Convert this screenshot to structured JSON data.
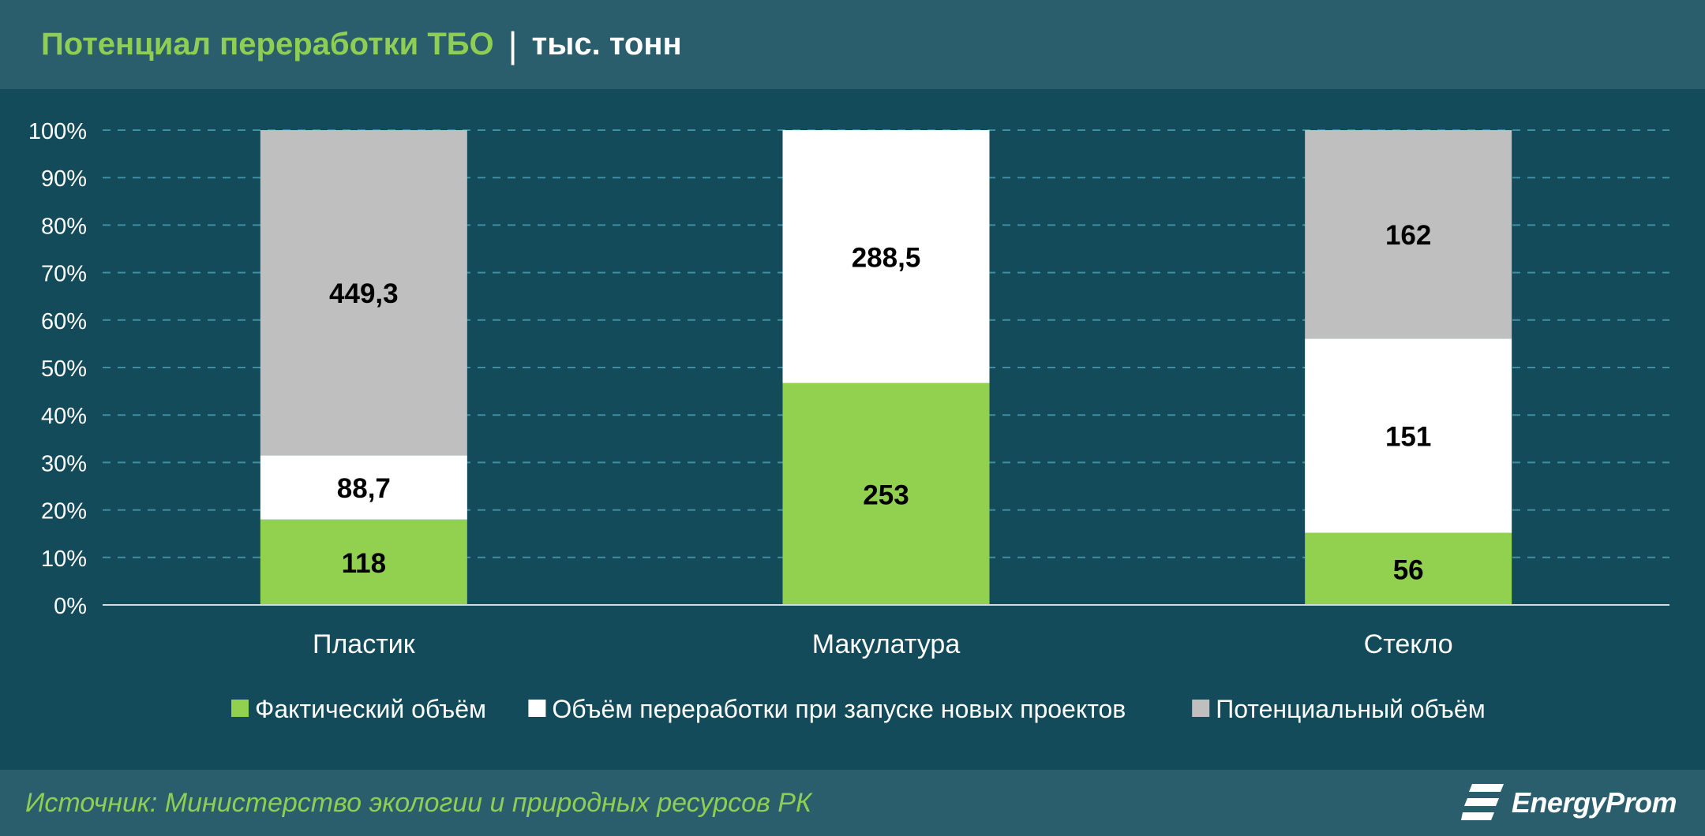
{
  "header": {
    "title": "Потенциал переработки ТБО",
    "separator": "|",
    "unit": "тыс. тонн"
  },
  "footer": {
    "source": "Источник: Министерство экологии и природных ресурсов РК",
    "logo_text": "EnergyProm"
  },
  "colors": {
    "background": "#134b5b",
    "header_band": "#2a5e6d",
    "accent_green": "#8fce55",
    "actual": "#92d050",
    "new_projects": "#ffffff",
    "potential": "#bfbfbf",
    "gridline": "#3f8fa3"
  },
  "chart_data": {
    "type": "bar",
    "stacked": "percent",
    "categories": [
      "Пластик",
      "Макулатура",
      "Стекло"
    ],
    "series": [
      {
        "name": "Фактический объём",
        "values": [
          118,
          253,
          56
        ],
        "color": "#92d050"
      },
      {
        "name": "Объём переработки при запуске новых проектов",
        "values": [
          88.7,
          288.5,
          151
        ],
        "color": "#ffffff"
      },
      {
        "name": "Потенциальный объём",
        "values": [
          449.3,
          0,
          162
        ],
        "color": "#bfbfbf"
      }
    ],
    "data_labels": [
      [
        "118",
        "253",
        "56"
      ],
      [
        "88,7",
        "288,5",
        "151"
      ],
      [
        "449,3",
        "",
        "162"
      ]
    ],
    "y_ticks": [
      "0%",
      "10%",
      "20%",
      "30%",
      "40%",
      "50%",
      "60%",
      "70%",
      "80%",
      "90%",
      "100%"
    ],
    "ylim": [
      0,
      100
    ],
    "grid": true,
    "legend_position": "bottom"
  }
}
